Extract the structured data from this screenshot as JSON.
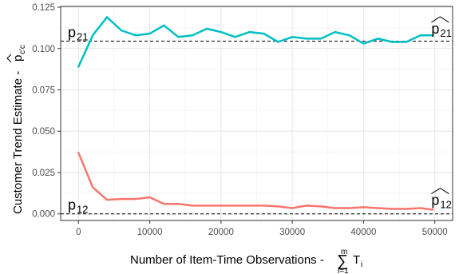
{
  "chart_data": {
    "type": "line",
    "xlabel": "Number of Item-Time Observations - ",
    "xlabel_sum_symbol": "∑",
    "xlabel_sum_upper": "m",
    "xlabel_sum_lower": "i=1",
    "xlabel_term": "T",
    "xlabel_term_sub": "i",
    "ylabel": "Customer Trend Estimate - ",
    "ylabel_symbol": "p",
    "ylabel_symbol_sub": "c'c",
    "xlim": [
      -2500,
      52500
    ],
    "ylim": [
      -0.004,
      0.1255
    ],
    "x_ticks": [
      0,
      10000,
      20000,
      30000,
      40000,
      50000
    ],
    "x_tick_labels": [
      "0",
      "10000",
      "20000",
      "30000",
      "40000",
      "50000"
    ],
    "y_ticks": [
      0.0,
      0.025,
      0.05,
      0.075,
      0.1,
      0.125
    ],
    "y_tick_labels": [
      "0.000",
      "0.025",
      "0.050",
      "0.075",
      "0.100",
      "0.125"
    ],
    "grid": true,
    "legend": "none",
    "series": [
      {
        "color": "#00BFC4",
        "x": [
          0,
          2000,
          4000,
          6000,
          8000,
          10000,
          12000,
          14000,
          16000,
          18000,
          20000,
          22000,
          24000,
          26000,
          28000,
          30000,
          32000,
          34000,
          36000,
          38000,
          40000,
          42000,
          44000,
          46000,
          48000,
          49700
        ],
        "y": [
          0.089,
          0.108,
          0.119,
          0.111,
          0.108,
          0.109,
          0.114,
          0.107,
          0.108,
          0.112,
          0.11,
          0.107,
          0.11,
          0.109,
          0.104,
          0.107,
          0.106,
          0.106,
          0.11,
          0.108,
          0.103,
          0.106,
          0.104,
          0.104,
          0.108,
          0.108
        ]
      },
      {
        "color": "#F8766D",
        "x": [
          0,
          2000,
          4000,
          6000,
          8000,
          10000,
          12000,
          14000,
          16000,
          18000,
          20000,
          22000,
          24000,
          26000,
          28000,
          30000,
          32000,
          34000,
          36000,
          38000,
          40000,
          42000,
          44000,
          46000,
          48000,
          49700
        ],
        "y": [
          0.037,
          0.016,
          0.0085,
          0.009,
          0.009,
          0.01,
          0.006,
          0.006,
          0.005,
          0.005,
          0.005,
          0.005,
          0.005,
          0.005,
          0.0045,
          0.0035,
          0.005,
          0.0045,
          0.0035,
          0.0035,
          0.004,
          0.0035,
          0.003,
          0.003,
          0.0035,
          0.0025
        ]
      }
    ],
    "reference_lines": [
      {
        "y": 0.1045,
        "style": "dashed",
        "color": "#000000",
        "label": "p",
        "label_sub": "21"
      },
      {
        "y": 0.0,
        "style": "dashed",
        "color": "#000000",
        "label": "p",
        "label_sub": "12"
      }
    ],
    "annotations": [
      {
        "text": "p",
        "sub": "21",
        "hat": true,
        "x": 50300,
        "y": 0.1115,
        "anchor": "middle"
      },
      {
        "text": "p",
        "sub": "12",
        "hat": true,
        "x": 50300,
        "y": 0.0078,
        "anchor": "middle"
      }
    ]
  }
}
